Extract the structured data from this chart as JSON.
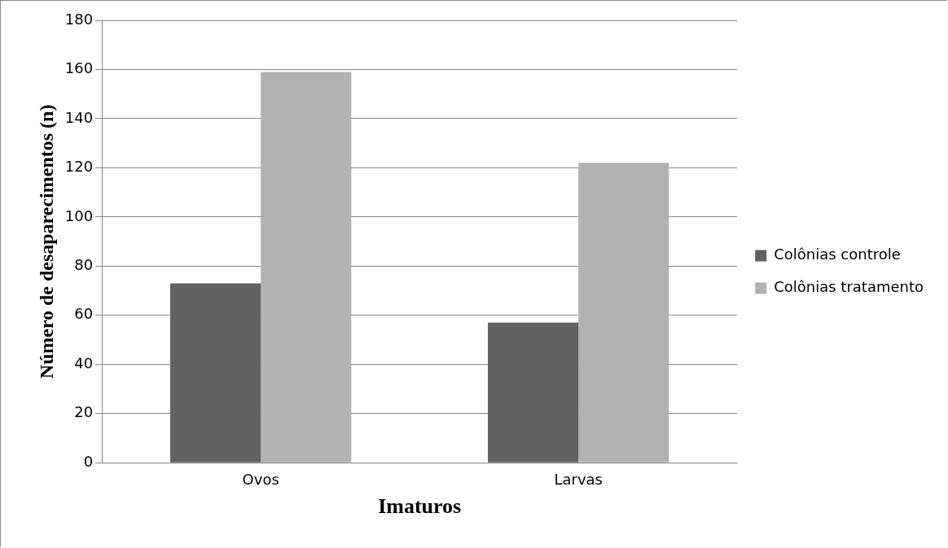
{
  "chart_data": {
    "type": "bar",
    "xlabel": "Imaturos",
    "ylabel": "Número de desaparecimentos (n)",
    "categories": [
      "Ovos",
      "Larvas"
    ],
    "series": [
      {
        "name": "Colônias controle",
        "color": "#626262",
        "values": [
          73,
          57
        ]
      },
      {
        "name": "Colônias tratamento",
        "color": "#b2b2b2",
        "values": [
          159,
          122
        ]
      }
    ],
    "ylim": [
      0,
      180
    ],
    "yticks": [
      0,
      20,
      40,
      60,
      80,
      100,
      120,
      140,
      160,
      180
    ],
    "grid": "y",
    "legend": "right"
  }
}
